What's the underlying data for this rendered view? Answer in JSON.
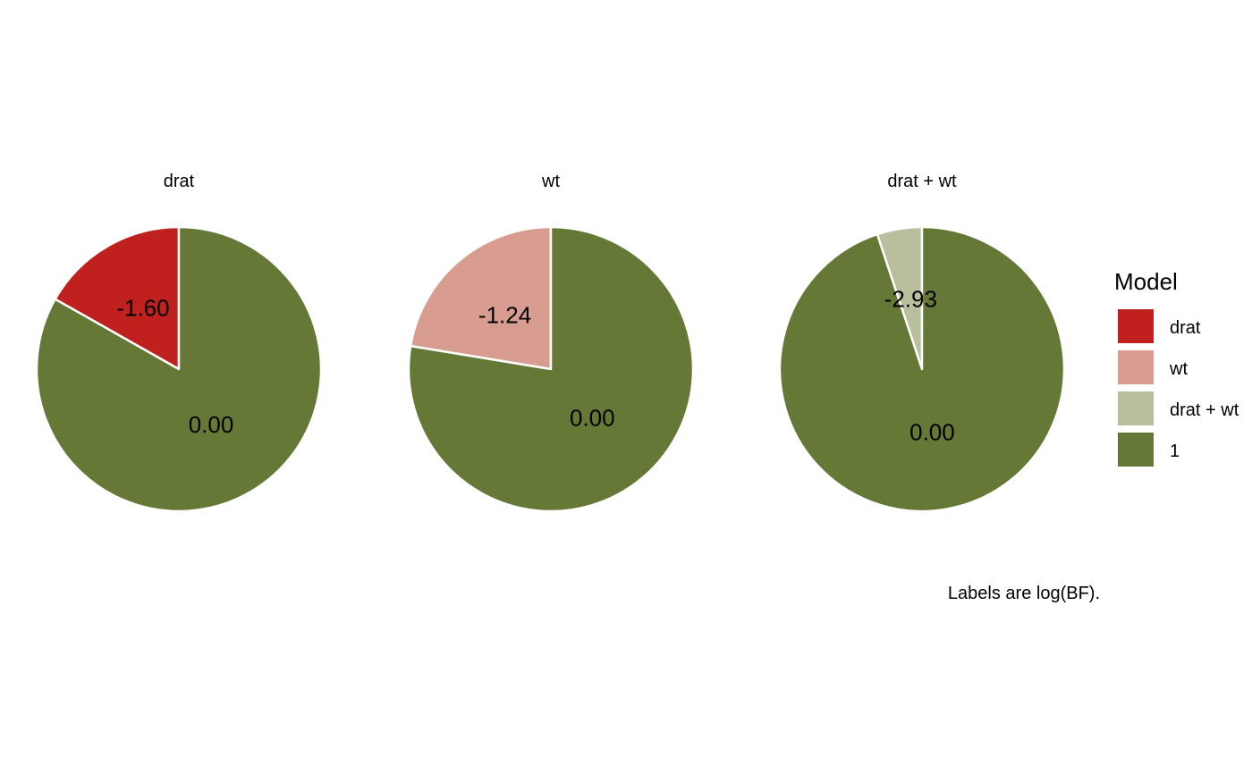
{
  "chart_data": {
    "type": "pie",
    "caption": "Labels are log(BF).",
    "legend": {
      "title": "Model",
      "placement": "right",
      "items": [
        {
          "label": "drat",
          "color": "#C0211E"
        },
        {
          "label": "wt",
          "color": "#D99C90"
        },
        {
          "label": "drat + wt",
          "color": "#B9BE9D"
        },
        {
          "label": "1",
          "color": "#657836"
        }
      ]
    },
    "panels": [
      {
        "title": "drat",
        "slices": [
          {
            "model": "drat",
            "proportion": 0.168,
            "label": "-1.60"
          },
          {
            "model": "1",
            "proportion": 0.832,
            "label": "0.00"
          }
        ]
      },
      {
        "title": "wt",
        "slices": [
          {
            "model": "wt",
            "proportion": 0.224,
            "label": "-1.24"
          },
          {
            "model": "1",
            "proportion": 0.776,
            "label": "0.00"
          }
        ]
      },
      {
        "title": "drat + wt",
        "slices": [
          {
            "model": "drat + wt",
            "proportion": 0.051,
            "label": "-2.93"
          },
          {
            "model": "1",
            "proportion": 0.949,
            "label": "0.00"
          }
        ]
      }
    ]
  }
}
